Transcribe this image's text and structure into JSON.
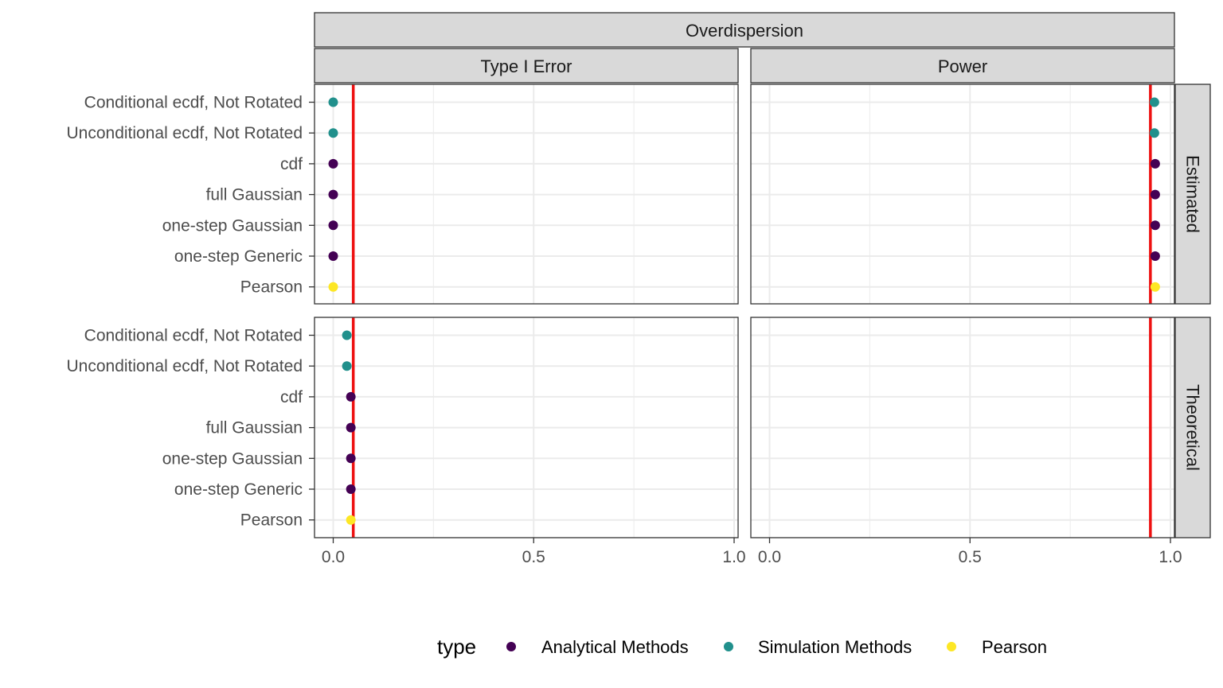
{
  "chart_data": {
    "type": "scatter",
    "facet_top": "Overdispersion",
    "columns": [
      "Type I Error",
      "Power"
    ],
    "rows": [
      "Estimated",
      "Theoretical"
    ],
    "categories": [
      "Conditional ecdf, Not Rotated",
      "Unconditional ecdf, Not Rotated",
      "cdf",
      "full Gaussian",
      "one-step Gaussian",
      "one-step Generic",
      "Pearson"
    ],
    "xlim": [
      0,
      1
    ],
    "x_ticks": [
      "0.0",
      "0.5",
      "1.0"
    ],
    "x_tick_values": [
      0,
      0.5,
      1
    ],
    "reference_lines": {
      "Type I Error": 0.05,
      "Power": 0.95
    },
    "reference_color": "#ee1111",
    "legend": {
      "title": "type",
      "position": "bottom",
      "entries": [
        {
          "label": "Analytical Methods",
          "color": "#440154"
        },
        {
          "label": "Simulation Methods",
          "color": "#21908c"
        },
        {
          "label": "Pearson",
          "color": "#fde725"
        }
      ]
    },
    "point_types": [
      "Simulation Methods",
      "Simulation Methods",
      "Analytical Methods",
      "Analytical Methods",
      "Analytical Methods",
      "Analytical Methods",
      "Pearson"
    ],
    "series": [
      {
        "column": "Type I Error",
        "row": "Estimated",
        "values": [
          0.0,
          0.0,
          0.0,
          0.0,
          0.0,
          0.0,
          0.0
        ]
      },
      {
        "column": "Power",
        "row": "Estimated",
        "values": [
          0.96,
          0.96,
          0.962,
          0.962,
          0.962,
          0.962,
          0.962
        ]
      },
      {
        "column": "Type I Error",
        "row": "Theoretical",
        "values": [
          0.034,
          0.034,
          0.044,
          0.044,
          0.044,
          0.044,
          0.044
        ]
      },
      {
        "column": "Power",
        "row": "Theoretical",
        "values": [
          null,
          null,
          null,
          null,
          null,
          null,
          null
        ]
      }
    ],
    "grid": true
  }
}
